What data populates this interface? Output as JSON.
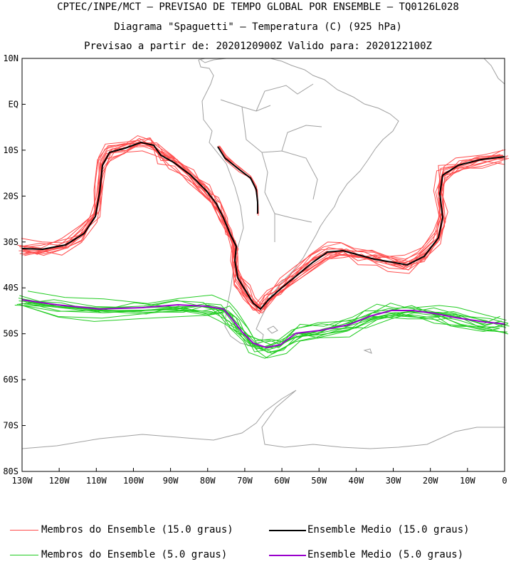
{
  "header": {
    "line1": "CPTEC/INPE/MCT – PREVISAO DE TEMPO GLOBAL POR ENSEMBLE – TQ0126L028",
    "line2": "Diagrama \"Spaguetti\" – Temperatura (C) (925 hPa)",
    "line3": "Previsao a partir de: 2020120900Z  Valido para: 2020122100Z"
  },
  "axes": {
    "lat_labels": [
      "10N",
      "EQ",
      "10S",
      "20S",
      "30S",
      "40S",
      "50S",
      "60S",
      "70S",
      "80S"
    ],
    "lon_labels": [
      "130W",
      "120W",
      "110W",
      "100W",
      "90W",
      "80W",
      "70W",
      "60W",
      "50W",
      "40W",
      "30W",
      "20W",
      "10W",
      "0"
    ],
    "lat_range": [
      -80,
      10
    ],
    "lon_range": [
      -130,
      0
    ]
  },
  "legend": [
    {
      "label": "Membros do Ensemble (15.0 graus)",
      "color": "#ff4c4c"
    },
    {
      "label": "Ensemble Medio (15.0 graus)",
      "color": "#000000"
    },
    {
      "label": "Membros do Ensemble (5.0 graus)",
      "color": "#22cc22"
    },
    {
      "label": "Ensemble Medio (5.0 graus)",
      "color": "#9900cc"
    }
  ],
  "colors": {
    "coastline": "#a0a0a0",
    "member15": "#ff4c4c",
    "mean15": "#000000",
    "member5": "#22cc22",
    "mean5": "#9900cc"
  }
}
